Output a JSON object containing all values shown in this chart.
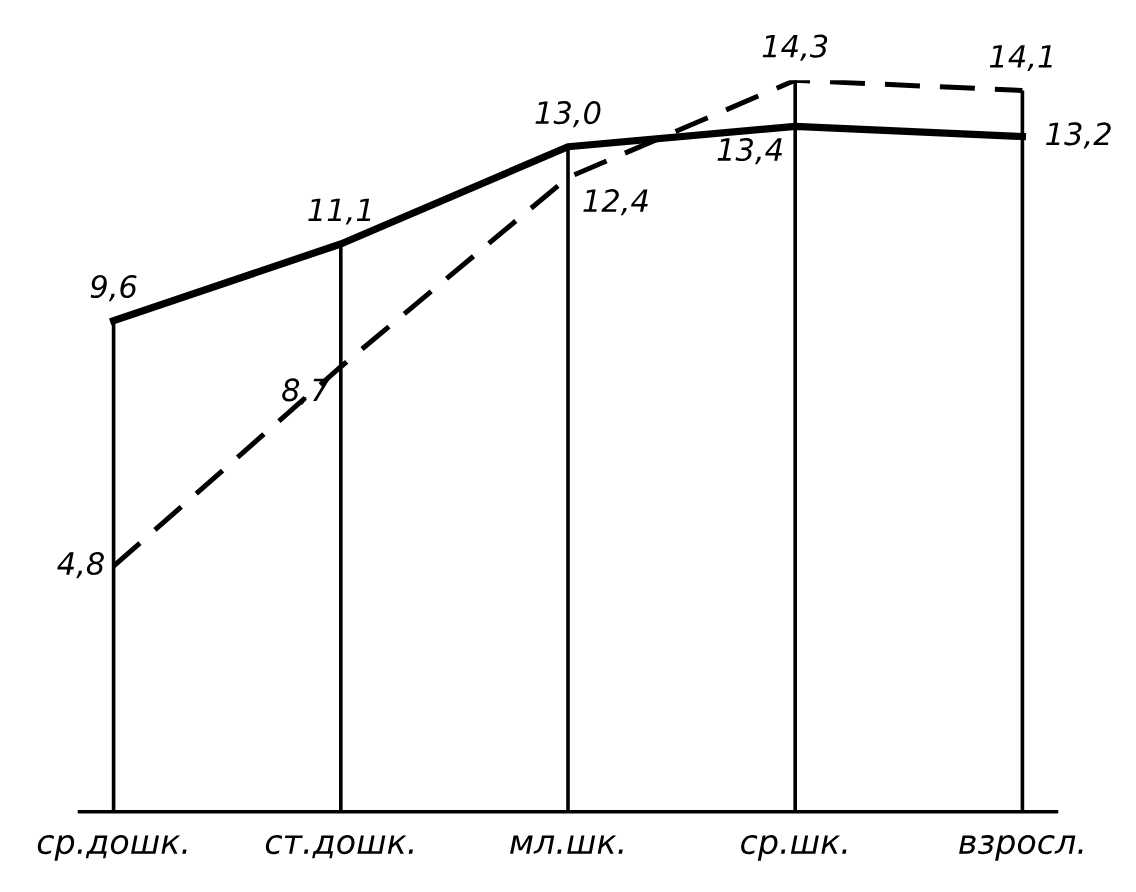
{
  "chart_data": {
    "type": "line",
    "categories": [
      "ср.дошк.",
      "ст.дошк.",
      "мл.шк.",
      "ср.шк.",
      "взросл."
    ],
    "series": [
      {
        "color": "#000000",
        "line_style": "solid",
        "values": [
          9.6,
          11.1,
          13.0,
          13.4,
          13.2
        ],
        "value_labels": [
          "9,6",
          "11,1",
          "13,0",
          "13,4",
          "13,2"
        ]
      },
      {
        "color": "#000000",
        "line_style": "dashed",
        "values": [
          4.8,
          8.7,
          12.4,
          14.3,
          14.1
        ],
        "value_labels": [
          "4,8",
          "8,7",
          "12,4",
          "14,3",
          "14,1"
        ]
      }
    ],
    "grid": "x",
    "marker": "none",
    "tick_labels": "x",
    "legend": false
  }
}
